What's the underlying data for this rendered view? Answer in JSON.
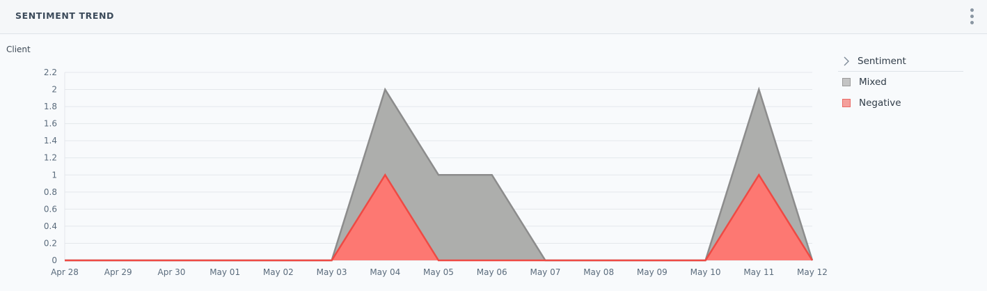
{
  "header": {
    "title": "SENTIMENT TREND",
    "menu_icon": "kebab-menu-icon"
  },
  "chart_data": {
    "type": "area",
    "ylabel": "Client",
    "categories": [
      "Apr 28",
      "Apr 29",
      "Apr 30",
      "May 01",
      "May 02",
      "May 03",
      "May 04",
      "May 05",
      "May 06",
      "May 07",
      "May 08",
      "May 09",
      "May 10",
      "May 11",
      "May 12"
    ],
    "y_ticks": [
      "0",
      "0.2",
      "0.4",
      "0.6",
      "0.8",
      "1",
      "1.2",
      "1.4",
      "1.6",
      "1.8",
      "2",
      "2.2"
    ],
    "ylim": [
      0,
      2.2
    ],
    "grid": true,
    "stacked": true,
    "legend_position": "right",
    "series": [
      {
        "name": "Mixed",
        "values": [
          0,
          0,
          0,
          0,
          0,
          0,
          1,
          1,
          1,
          0,
          0,
          0,
          0,
          1,
          0
        ],
        "color": "#8c8c8c",
        "fill": "#adaeac"
      },
      {
        "name": "Negative",
        "values": [
          0,
          0,
          0,
          0,
          0,
          0,
          1,
          0,
          0,
          0,
          0,
          0,
          0,
          1,
          0
        ],
        "color": "#ee4a44",
        "fill": "#fd7872"
      }
    ]
  },
  "legend": {
    "title": "Sentiment",
    "items": [
      {
        "label": "Mixed",
        "color": "#c4c4c4",
        "border": "#9a9a9a"
      },
      {
        "label": "Negative",
        "color": "#f4a09c",
        "border": "#ea6a66"
      }
    ]
  }
}
